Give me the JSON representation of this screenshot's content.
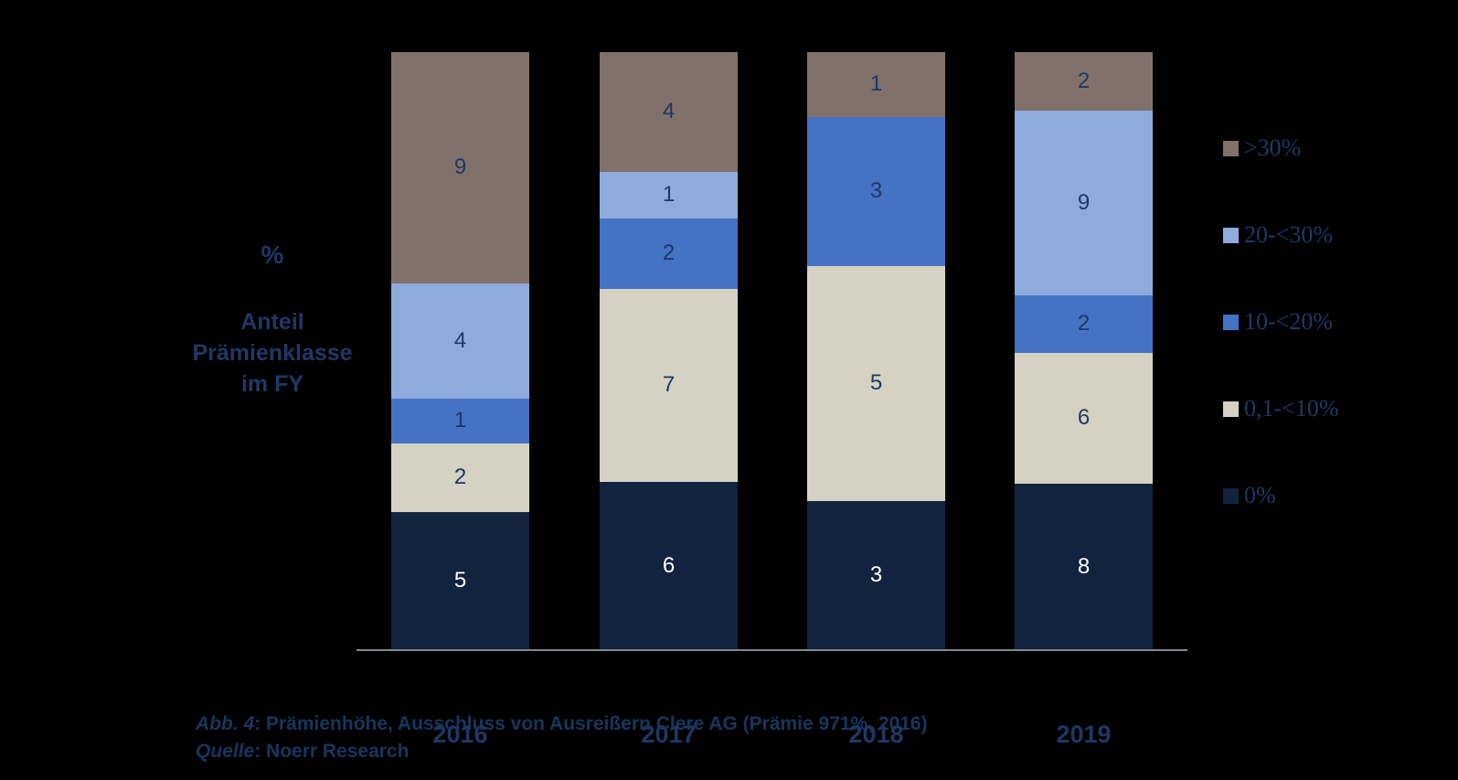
{
  "background_color": "#000000",
  "text_color": "#1F3864",
  "axis_line_color": "#84878E",
  "chart_data": {
    "type": "bar",
    "variant": "stacked-100-percent",
    "grid": false,
    "categories": [
      "2016",
      "2017",
      "2018",
      "2019"
    ],
    "series": [
      {
        "name": "0%",
        "color": "#12233F",
        "label_color": "#FFFFFF",
        "values": [
          5,
          6,
          3,
          8
        ]
      },
      {
        "name": "0,1-<10%",
        "color": "#D5D2C4",
        "label_color": "#1F3864",
        "values": [
          2,
          7,
          5,
          6
        ]
      },
      {
        "name": "10-<20%",
        "color": "#4472C4",
        "label_color": "#1F3864",
        "values": [
          1,
          2,
          3,
          2
        ]
      },
      {
        "name": "20-<30%",
        "color": "#8FAADC",
        "label_color": "#1F3864",
        "values": [
          4,
          1,
          0,
          9
        ]
      },
      {
        "name": ">30%",
        "color": "#80726A",
        "label_color": "#1F3864",
        "values": [
          9,
          4,
          1,
          2
        ]
      }
    ],
    "stack_order_note": "first series is bottom of stack; rendered heights are value/column-total",
    "column_totals": [
      21,
      20,
      12,
      27
    ],
    "ylabel_unit": "%",
    "ylabel_lines": [
      "Anteil",
      "Prämienklasse",
      "im FY"
    ],
    "legend": {
      "position": "right",
      "items": [
        ">30%",
        "20-<30%",
        "10-<20%",
        "0,1-<10%",
        "0%"
      ]
    }
  },
  "caption": {
    "line1_prefix": "Abb. 4",
    "line1_text": ": Prämienhöhe, Ausschluss von Ausreißern Clere AG (Prämie 971%, 2016)",
    "line2_prefix": "Quelle",
    "line2_text": ": Noerr Research"
  }
}
